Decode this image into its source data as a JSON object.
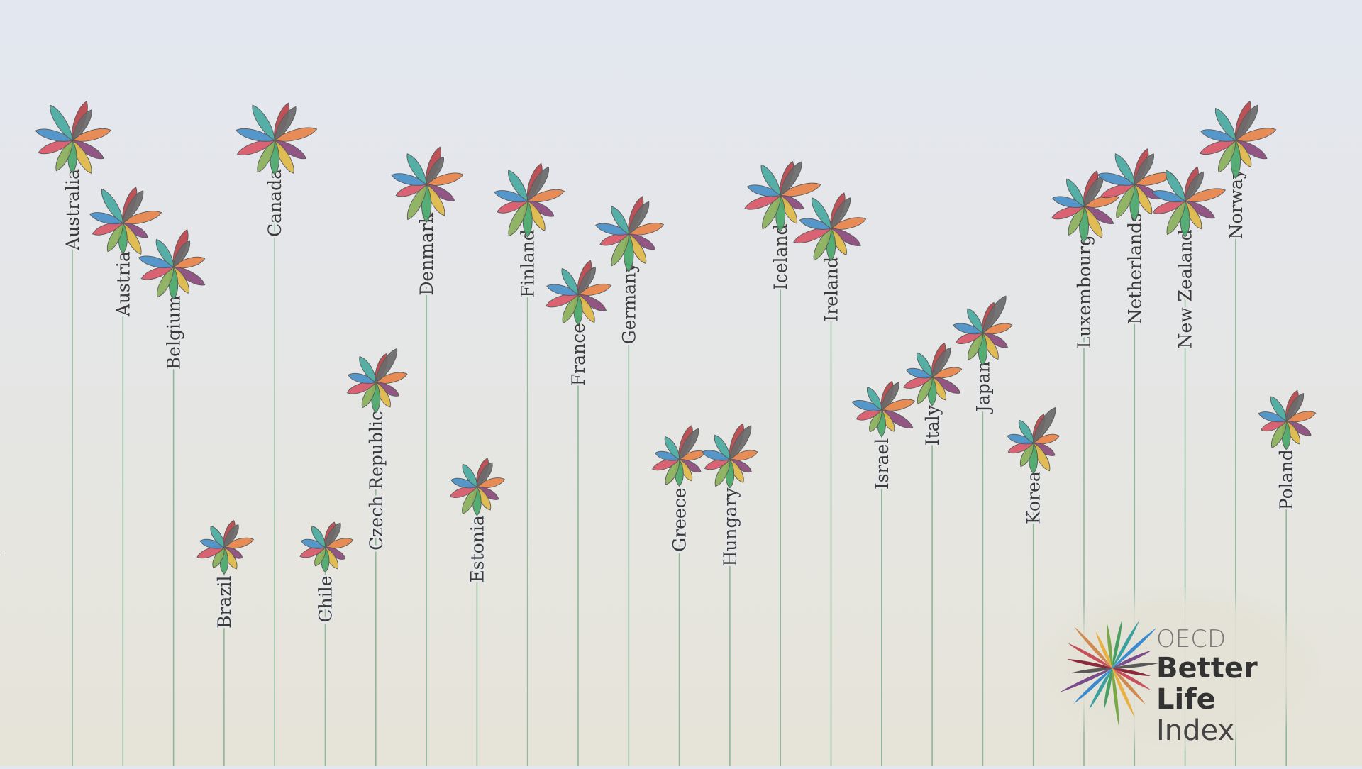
{
  "logo": {
    "line1": "OECD",
    "line2": "Better Life",
    "line3": "Index",
    "colors": [
      "#8a2a3a",
      "#c8505a",
      "#d08a50",
      "#e8b040",
      "#7aa848",
      "#48a060",
      "#3aa0a0",
      "#3a8ad0",
      "#7a4a8a",
      "#5a5a5a"
    ]
  },
  "chart_data": {
    "type": "flower",
    "title": "",
    "petal_colors": {
      "dark_red": "#b8444a",
      "orange": "#e8844a",
      "purple": "#8a4a7a",
      "yellow": "#e0b848",
      "green": "#4aa86a",
      "olive": "#8ab05a",
      "pink": "#d85868",
      "blue": "#4a90c8",
      "teal": "#4aaaa0",
      "gray": "#6a6a6a"
    },
    "countries": [
      {
        "name": "Australia",
        "score": 0.88,
        "petals": [
          0.85,
          0.8,
          0.7,
          0.75,
          0.6,
          0.65,
          0.7,
          0.75,
          0.85,
          0.7
        ]
      },
      {
        "name": "Austria",
        "score": 0.73,
        "petals": [
          0.75,
          0.8,
          0.5,
          0.7,
          0.55,
          0.6,
          0.6,
          0.65,
          0.8,
          0.75
        ]
      },
      {
        "name": "Belgium",
        "score": 0.65,
        "petals": [
          0.8,
          0.6,
          0.7,
          0.55,
          0.6,
          0.65,
          0.65,
          0.7,
          0.6,
          0.55
        ]
      },
      {
        "name": "Brazil",
        "score": 0.14,
        "petals": [
          0.5,
          0.55,
          0.3,
          0.4,
          0.45,
          0.35,
          0.5,
          0.4,
          0.4,
          0.45
        ]
      },
      {
        "name": "Canada",
        "score": 0.88,
        "petals": [
          0.8,
          0.9,
          0.7,
          0.75,
          0.65,
          0.7,
          0.8,
          0.8,
          0.85,
          0.8
        ]
      },
      {
        "name": "Chile",
        "score": 0.14,
        "petals": [
          0.45,
          0.5,
          0.35,
          0.4,
          0.4,
          0.3,
          0.45,
          0.4,
          0.4,
          0.5
        ]
      },
      {
        "name": "Czech Republic",
        "score": 0.44,
        "petals": [
          0.55,
          0.6,
          0.45,
          0.5,
          0.55,
          0.5,
          0.55,
          0.5,
          0.55,
          0.8
        ]
      },
      {
        "name": "Denmark",
        "score": 0.8,
        "petals": [
          0.8,
          0.75,
          0.6,
          0.7,
          0.75,
          0.8,
          0.6,
          0.7,
          0.7,
          0.6
        ]
      },
      {
        "name": "Estonia",
        "score": 0.25,
        "petals": [
          0.55,
          0.5,
          0.4,
          0.45,
          0.5,
          0.55,
          0.5,
          0.45,
          0.45,
          0.5
        ]
      },
      {
        "name": "Finland",
        "score": 0.77,
        "petals": [
          0.8,
          0.75,
          0.55,
          0.65,
          0.7,
          0.8,
          0.6,
          0.65,
          0.7,
          0.8
        ]
      },
      {
        "name": "France",
        "score": 0.6,
        "petals": [
          0.7,
          0.65,
          0.6,
          0.6,
          0.55,
          0.6,
          0.65,
          0.6,
          0.55,
          0.6
        ]
      },
      {
        "name": "Germany",
        "score": 0.71,
        "petals": [
          0.8,
          0.7,
          0.55,
          0.65,
          0.75,
          0.7,
          0.55,
          0.65,
          0.6,
          0.75
        ]
      },
      {
        "name": "Greece",
        "score": 0.3,
        "petals": [
          0.7,
          0.45,
          0.4,
          0.4,
          0.45,
          0.5,
          0.5,
          0.4,
          0.45,
          0.7
        ]
      },
      {
        "name": "Hungary",
        "score": 0.3,
        "petals": [
          0.75,
          0.5,
          0.4,
          0.45,
          0.5,
          0.55,
          0.45,
          0.5,
          0.5,
          0.8
        ]
      },
      {
        "name": "Iceland",
        "score": 0.78,
        "petals": [
          0.7,
          0.85,
          0.45,
          0.6,
          0.7,
          0.75,
          0.75,
          0.65,
          0.7,
          0.8
        ]
      },
      {
        "name": "Ireland",
        "score": 0.72,
        "petals": [
          0.75,
          0.7,
          0.65,
          0.55,
          0.6,
          0.7,
          0.8,
          0.6,
          0.7,
          0.7
        ]
      },
      {
        "name": "Israel",
        "score": 0.39,
        "petals": [
          0.55,
          0.65,
          0.7,
          0.4,
          0.45,
          0.4,
          0.45,
          0.55,
          0.45,
          0.6
        ]
      },
      {
        "name": "Italy",
        "score": 0.45,
        "petals": [
          0.7,
          0.55,
          0.6,
          0.45,
          0.5,
          0.55,
          0.55,
          0.45,
          0.5,
          0.65
        ]
      },
      {
        "name": "Japan",
        "score": 0.53,
        "petals": [
          0.6,
          0.55,
          0.5,
          0.55,
          0.6,
          0.55,
          0.5,
          0.55,
          0.5,
          0.9
        ]
      },
      {
        "name": "Korea",
        "score": 0.33,
        "petals": [
          0.55,
          0.45,
          0.4,
          0.6,
          0.55,
          0.45,
          0.45,
          0.45,
          0.45,
          0.85
        ]
      },
      {
        "name": "Luxembourg",
        "score": 0.76,
        "petals": [
          0.75,
          0.7,
          0.65,
          0.7,
          0.7,
          0.6,
          0.65,
          0.6,
          0.6,
          0.7
        ]
      },
      {
        "name": "Netherlands",
        "score": 0.8,
        "petals": [
          0.75,
          0.8,
          0.5,
          0.65,
          0.7,
          0.75,
          0.7,
          0.75,
          0.7,
          0.7
        ]
      },
      {
        "name": "New Zealand",
        "score": 0.77,
        "petals": [
          0.7,
          0.85,
          0.65,
          0.6,
          0.7,
          0.75,
          0.65,
          0.65,
          0.7,
          0.65
        ]
      },
      {
        "name": "Norway",
        "score": 0.88,
        "petals": [
          0.85,
          0.85,
          0.7,
          0.55,
          0.75,
          0.7,
          0.75,
          0.7,
          0.75,
          0.85
        ]
      },
      {
        "name": "Poland",
        "score": 0.37,
        "petals": [
          0.6,
          0.55,
          0.5,
          0.45,
          0.5,
          0.55,
          0.45,
          0.5,
          0.5,
          0.6
        ]
      }
    ]
  }
}
